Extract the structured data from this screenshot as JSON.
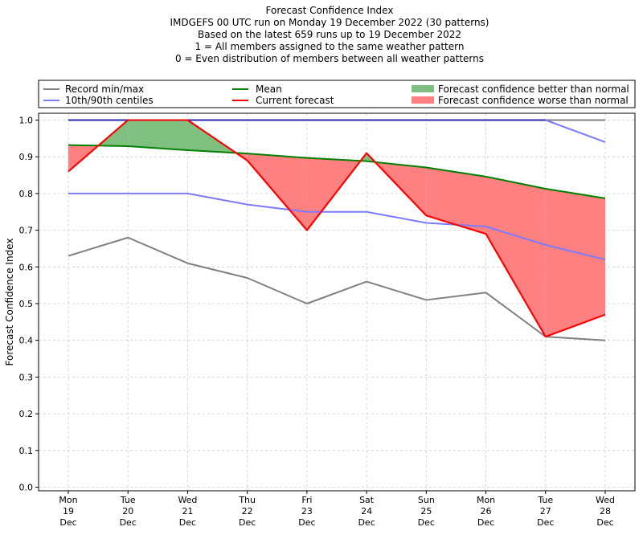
{
  "chart_data": {
    "type": "line",
    "title_lines": [
      "Forecast Confidence Index",
      "IMDGEFS 00 UTC run on Monday 19 December 2022 (30 patterns)",
      "Based on the latest 659 runs up to 19 December 2022",
      "1 = All members assigned to the same weather pattern",
      "0 = Even distribution of members between all weather patterns"
    ],
    "xlabel": "",
    "ylabel": "Forecast Confidence Index",
    "ylim": [
      0,
      1
    ],
    "yticks": [
      "0.0",
      "0.1",
      "0.2",
      "0.3",
      "0.4",
      "0.5",
      "0.6",
      "0.7",
      "0.8",
      "0.9",
      "1.0"
    ],
    "ytick_values": [
      0,
      0.1,
      0.2,
      0.3,
      0.4,
      0.5,
      0.6,
      0.7,
      0.8,
      0.9,
      1.0
    ],
    "categories": [
      [
        "Mon",
        "19",
        "Dec"
      ],
      [
        "Tue",
        "20",
        "Dec"
      ],
      [
        "Wed",
        "21",
        "Dec"
      ],
      [
        "Thu",
        "22",
        "Dec"
      ],
      [
        "Fri",
        "23",
        "Dec"
      ],
      [
        "Sat",
        "24",
        "Dec"
      ],
      [
        "Sun",
        "25",
        "Dec"
      ],
      [
        "Mon",
        "26",
        "Dec"
      ],
      [
        "Tue",
        "27",
        "Dec"
      ],
      [
        "Wed",
        "28",
        "Dec"
      ]
    ],
    "grid": true,
    "legend_position": "top",
    "series": [
      {
        "name": "Record max",
        "color": "#808080",
        "values": [
          1.0,
          1.0,
          1.0,
          1.0,
          1.0,
          1.0,
          1.0,
          1.0,
          1.0,
          1.0
        ]
      },
      {
        "name": "Record min",
        "color": "#808080",
        "values": [
          0.63,
          0.68,
          0.61,
          0.57,
          0.5,
          0.56,
          0.51,
          0.53,
          0.41,
          0.4
        ]
      },
      {
        "name": "90th centile",
        "color": "#7b7bff",
        "values": [
          1.0,
          1.0,
          1.0,
          1.0,
          1.0,
          1.0,
          1.0,
          1.0,
          1.0,
          0.94
        ]
      },
      {
        "name": "10th centile",
        "color": "#7b7bff",
        "values": [
          0.8,
          0.8,
          0.8,
          0.77,
          0.75,
          0.75,
          0.72,
          0.71,
          0.66,
          0.62
        ]
      },
      {
        "name": "Mean",
        "color": "#008000",
        "values": [
          0.932,
          0.929,
          0.918,
          0.909,
          0.897,
          0.888,
          0.871,
          0.846,
          0.813,
          0.787
        ]
      },
      {
        "name": "Current forecast",
        "color": "#ff0000",
        "values": [
          0.86,
          1.0,
          1.0,
          0.89,
          0.7,
          0.91,
          0.74,
          0.69,
          0.41,
          0.47
        ]
      }
    ],
    "fills": {
      "better": {
        "label": "Forecast confidence better than normal",
        "color": "#7fbf7f"
      },
      "worse": {
        "label": "Forecast confidence worse than normal",
        "color": "#ff8080"
      }
    },
    "legend": [
      {
        "label": "Record min/max",
        "color": "#808080",
        "kind": "line"
      },
      {
        "label": "10th/90th centiles",
        "color": "#7b7bff",
        "kind": "line"
      },
      {
        "label": "Mean",
        "color": "#008000",
        "kind": "line"
      },
      {
        "label": "Current forecast",
        "color": "#ff0000",
        "kind": "line"
      },
      {
        "label": "Forecast confidence better than normal",
        "color": "#7fbf7f",
        "kind": "patch"
      },
      {
        "label": "Forecast confidence worse than normal",
        "color": "#ff8080",
        "kind": "patch"
      }
    ]
  }
}
